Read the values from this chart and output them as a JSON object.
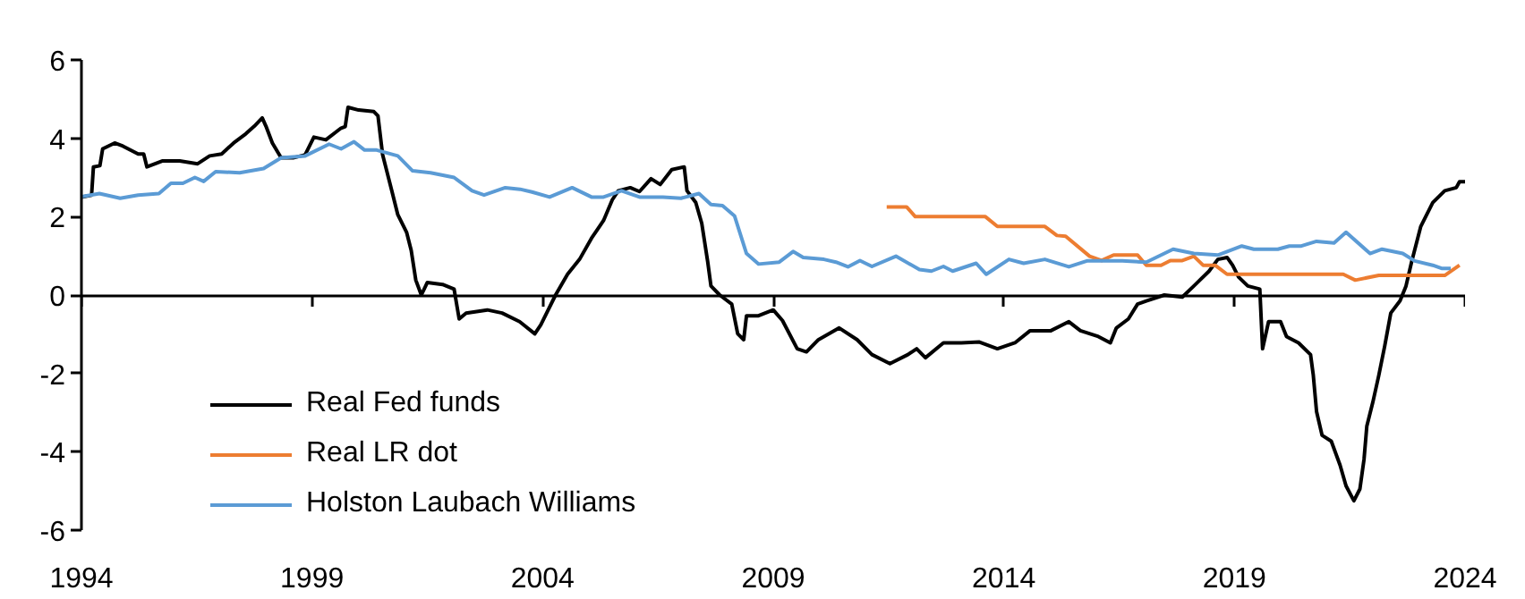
{
  "chart_data": {
    "type": "line",
    "xlim": [
      1994,
      2024
    ],
    "ylim": [
      -6,
      6
    ],
    "xticks": [
      1994,
      1999,
      2004,
      2009,
      2014,
      2019,
      2024
    ],
    "yticks": [
      -6,
      -4,
      -2,
      0,
      2,
      4,
      6
    ],
    "legend": "bottom left",
    "series": [
      {
        "name": "Real Fed funds",
        "color": "#000000",
        "x": [
          1994.0,
          1994.22,
          1994.26,
          1994.4,
          1994.46,
          1994.72,
          1994.9,
          1995.23,
          1995.35,
          1995.42,
          1995.75,
          1996.13,
          1996.52,
          1996.78,
          1997.04,
          1997.3,
          1997.56,
          1997.75,
          1997.92,
          1998.0,
          1998.14,
          1998.33,
          1998.59,
          1998.85,
          1999.04,
          1999.3,
          1999.63,
          1999.72,
          1999.78,
          2000.01,
          2000.34,
          2000.43,
          2000.53,
          2000.73,
          2000.86,
          2001.05,
          2001.15,
          2001.25,
          2001.37,
          2001.5,
          2001.83,
          2002.08,
          2002.19,
          2002.34,
          2002.8,
          2003.12,
          2003.5,
          2003.83,
          2003.96,
          2004.28,
          2004.54,
          2004.8,
          2005.06,
          2005.32,
          2005.51,
          2005.64,
          2005.9,
          2006.1,
          2006.35,
          2006.55,
          2006.8,
          2007.07,
          2007.13,
          2007.32,
          2007.45,
          2007.58,
          2007.65,
          2007.84,
          2008.1,
          2008.23,
          2008.36,
          2008.42,
          2008.68,
          2009.0,
          2009.2,
          2009.52,
          2009.72,
          2009.98,
          2010.43,
          2010.82,
          2011.14,
          2011.53,
          2011.92,
          2012.11,
          2012.3,
          2012.69,
          2013.08,
          2013.47,
          2013.86,
          2014.24,
          2014.57,
          2015.02,
          2015.41,
          2015.66,
          2016.05,
          2016.31,
          2016.44,
          2016.7,
          2016.9,
          2017.09,
          2017.48,
          2017.87,
          2018.12,
          2018.45,
          2018.64,
          2018.84,
          2018.96,
          2019.09,
          2019.29,
          2019.55,
          2019.61,
          2019.74,
          2020.0,
          2020.13,
          2020.39,
          2020.65,
          2020.71,
          2020.78,
          2020.9,
          2021.1,
          2021.29,
          2021.42,
          2021.59,
          2021.72,
          2021.81,
          2021.87,
          2022.0,
          2022.13,
          2022.26,
          2022.39,
          2022.59,
          2022.72,
          2022.84,
          2023.04,
          2023.3,
          2023.56,
          2023.81,
          2023.88,
          2024.0
        ],
        "values": [
          2.5,
          2.55,
          3.27,
          3.3,
          3.73,
          3.88,
          3.8,
          3.6,
          3.6,
          3.27,
          3.42,
          3.42,
          3.35,
          3.55,
          3.6,
          3.88,
          4.11,
          4.31,
          4.52,
          4.31,
          3.88,
          3.5,
          3.5,
          3.58,
          4.03,
          3.96,
          4.26,
          4.3,
          4.79,
          4.72,
          4.68,
          4.57,
          3.58,
          2.66,
          2.05,
          1.6,
          1.14,
          0.38,
          0.0,
          0.32,
          0.27,
          0.15,
          -0.61,
          -0.46,
          -0.38,
          -0.46,
          -0.68,
          -0.99,
          -0.76,
          0.0,
          0.53,
          0.91,
          1.45,
          1.9,
          2.43,
          2.66,
          2.74,
          2.64,
          2.97,
          2.82,
          3.2,
          3.27,
          2.66,
          2.36,
          1.83,
          0.84,
          0.23,
          0.0,
          -0.23,
          -0.99,
          -1.14,
          -0.53,
          -0.53,
          -0.38,
          -0.65,
          -1.37,
          -1.45,
          -1.14,
          -0.84,
          -1.14,
          -1.52,
          -1.75,
          -1.52,
          -1.37,
          -1.6,
          -1.22,
          -1.22,
          -1.2,
          -1.37,
          -1.22,
          -0.91,
          -0.91,
          -0.68,
          -0.91,
          -1.06,
          -1.22,
          -0.84,
          -0.61,
          -0.23,
          -0.15,
          0.0,
          -0.05,
          0.23,
          0.61,
          0.91,
          0.96,
          0.76,
          0.46,
          0.23,
          0.15,
          -1.37,
          -0.68,
          -0.68,
          -1.06,
          -1.22,
          -1.52,
          -2.05,
          -2.97,
          -3.58,
          -3.73,
          -4.34,
          -4.87,
          -5.25,
          -4.95,
          -4.19,
          -3.35,
          -2.74,
          -2.05,
          -1.29,
          -0.46,
          -0.15,
          0.23,
          0.84,
          1.75,
          2.36,
          2.66,
          2.74,
          2.89,
          2.89
        ]
      },
      {
        "name": "Real LR dot",
        "color": "#ed7d31",
        "x": [
          2011.46,
          2011.89,
          2012.08,
          2013.6,
          2013.86,
          2014.89,
          2015.15,
          2015.34,
          2015.86,
          2016.12,
          2016.38,
          2016.9,
          2017.09,
          2017.41,
          2017.61,
          2017.87,
          2018.12,
          2018.32,
          2018.58,
          2018.84,
          2021.36,
          2021.62,
          2022.13,
          2023.56,
          2023.88
        ],
        "values": [
          2.25,
          2.25,
          2.0,
          2.0,
          1.75,
          1.75,
          1.52,
          1.5,
          0.99,
          0.88,
          1.02,
          1.02,
          0.76,
          0.76,
          0.88,
          0.88,
          0.99,
          0.76,
          0.76,
          0.53,
          0.53,
          0.38,
          0.5,
          0.5,
          0.76
        ]
      },
      {
        "name": "Holston Laubach Williams",
        "color": "#5b9bd5",
        "x": [
          1994.0,
          1994.39,
          1994.84,
          1995.23,
          1995.68,
          1995.94,
          1996.2,
          1996.46,
          1996.65,
          1996.91,
          1997.43,
          1997.95,
          1998.33,
          1998.85,
          1999.37,
          1999.63,
          1999.91,
          2000.14,
          2000.4,
          2000.86,
          2001.18,
          2001.57,
          2002.08,
          2002.47,
          2002.73,
          2003.19,
          2003.51,
          2003.77,
          2004.15,
          2004.64,
          2005.06,
          2005.32,
          2005.71,
          2006.1,
          2006.61,
          2007.0,
          2007.39,
          2007.65,
          2007.9,
          2008.16,
          2008.42,
          2008.68,
          2009.13,
          2009.43,
          2009.65,
          2010.1,
          2010.36,
          2010.62,
          2010.88,
          2011.14,
          2011.66,
          2012.17,
          2012.43,
          2012.69,
          2012.89,
          2013.4,
          2013.62,
          2014.11,
          2014.43,
          2014.89,
          2015.41,
          2015.8,
          2016.57,
          2017.09,
          2017.67,
          2018.12,
          2018.64,
          2019.16,
          2019.42,
          2019.94,
          2020.19,
          2020.45,
          2020.78,
          2021.16,
          2021.42,
          2021.94,
          2022.2,
          2022.65,
          2022.91,
          2023.3,
          2023.49,
          2023.69
        ],
        "values": [
          2.51,
          2.59,
          2.47,
          2.55,
          2.59,
          2.85,
          2.85,
          3.0,
          2.9,
          3.15,
          3.12,
          3.23,
          3.5,
          3.55,
          3.85,
          3.73,
          3.91,
          3.7,
          3.7,
          3.55,
          3.17,
          3.12,
          3.0,
          2.66,
          2.55,
          2.74,
          2.7,
          2.63,
          2.5,
          2.74,
          2.5,
          2.5,
          2.66,
          2.5,
          2.5,
          2.47,
          2.59,
          2.31,
          2.28,
          2.02,
          1.06,
          0.79,
          0.84,
          1.11,
          0.96,
          0.91,
          0.84,
          0.72,
          0.88,
          0.73,
          0.99,
          0.65,
          0.61,
          0.73,
          0.61,
          0.81,
          0.53,
          0.91,
          0.81,
          0.91,
          0.72,
          0.87,
          0.87,
          0.84,
          1.17,
          1.06,
          1.02,
          1.25,
          1.17,
          1.17,
          1.25,
          1.25,
          1.37,
          1.33,
          1.6,
          1.06,
          1.17,
          1.06,
          0.87,
          0.76,
          0.68,
          0.68
        ]
      }
    ]
  }
}
